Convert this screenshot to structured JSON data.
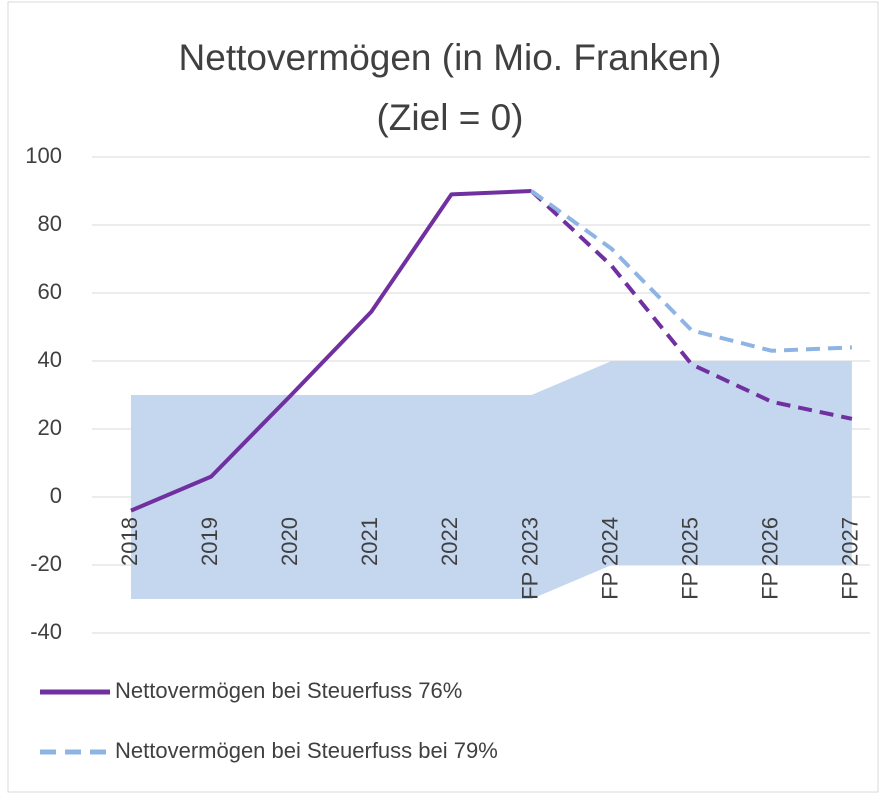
{
  "chart_data": {
    "type": "line",
    "title": [
      "Nettovermögen (in Mio. Franken)",
      "(Ziel = 0)"
    ],
    "categories": [
      "2018",
      "2019",
      "2020",
      "2021",
      "2022",
      "FP 2023",
      "FP 2024",
      "FP 2025",
      "FP 2026",
      "FP 2027"
    ],
    "series": [
      {
        "name": "Nettovermögen bei Steuerfuss 76%",
        "color": "#7030a0",
        "values": [
          -4,
          6,
          30,
          54.5,
          89,
          90,
          68,
          39,
          28,
          23
        ],
        "dash_from_index": 5
      },
      {
        "name": "Nettovermögen bei Steuerfuss bei 79%",
        "color": "#8eb4e3",
        "dashed": true,
        "values": [
          null,
          null,
          null,
          null,
          null,
          90,
          73,
          49,
          43,
          44
        ]
      }
    ],
    "band": {
      "color": "#c5d7ef",
      "upper": [
        30,
        30,
        30,
        30,
        30,
        30,
        40,
        40,
        40,
        40
      ],
      "lower": [
        -30,
        -30,
        -30,
        -30,
        -30,
        -30,
        -20,
        -20,
        -20,
        -20
      ]
    },
    "ylim": [
      -40,
      100
    ],
    "yticks": [
      -40,
      -20,
      0,
      20,
      40,
      60,
      80,
      100
    ],
    "grid": true,
    "legend": "bottom"
  }
}
